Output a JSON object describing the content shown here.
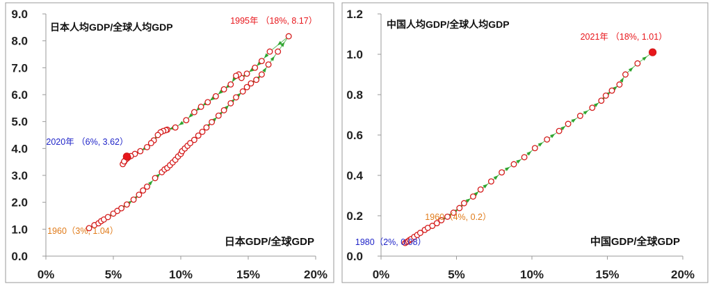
{
  "chart_data": [
    {
      "type": "scatter",
      "title": "",
      "inner_label_topleft": "日本人均GDP/全球人均GDP",
      "inner_label_bottomright": "日本GDP/全球GDP",
      "xlim": [
        0,
        20
      ],
      "ylim": [
        0,
        9
      ],
      "x_ticks": [
        "0%",
        "5%",
        "10%",
        "15%",
        "20%"
      ],
      "y_ticks": [
        "0.0",
        "1.0",
        "2.0",
        "3.0",
        "4.0",
        "5.0",
        "6.0",
        "7.0",
        "8.0",
        "9.0"
      ],
      "grid": false,
      "annotations": [
        {
          "text": "1995年  （18%, 8.17）",
          "x": 18.0,
          "y": 8.17,
          "color": "#e8161b"
        },
        {
          "text": "2020年  （6%, 3.62）",
          "x": 6.0,
          "y": 3.62,
          "color": "#1f24c8"
        },
        {
          "text": "1960（3%, 1.04）",
          "x": 3.2,
          "y": 1.04,
          "color": "#e07b1a"
        }
      ],
      "series": [
        {
          "marker": "circle",
          "x": [
            3.2,
            3.6,
            3.9,
            4.1,
            4.3,
            4.6,
            5.0,
            5.3,
            5.6,
            6.0,
            6.5,
            6.9,
            7.2,
            7.5,
            8.1,
            8.6,
            8.8,
            9.0,
            9.2,
            9.4,
            9.6,
            9.8,
            10.0,
            10.1,
            10.3,
            10.5,
            10.7,
            11.0,
            11.3,
            11.6,
            11.9,
            12.3,
            12.8,
            13.2,
            13.7,
            14.1,
            14.6,
            14.9,
            15.2,
            15.6,
            16.0,
            16.5,
            17.2,
            18.0,
            16.6,
            16.0,
            15.5,
            14.9,
            14.5,
            14.3,
            14.1,
            13.7,
            13.2,
            12.6,
            12.0,
            11.5,
            11.0,
            10.4,
            9.6,
            9.0,
            8.9,
            8.7,
            8.5,
            8.3,
            8.0,
            7.8,
            7.5,
            7.0,
            6.6,
            6.3,
            6.1,
            6.0,
            5.9,
            5.8,
            5.7,
            5.8,
            6.0
          ],
          "y": [
            1.04,
            1.15,
            1.22,
            1.3,
            1.36,
            1.45,
            1.58,
            1.68,
            1.78,
            1.92,
            2.1,
            2.28,
            2.44,
            2.58,
            2.9,
            3.12,
            3.22,
            3.28,
            3.38,
            3.48,
            3.58,
            3.7,
            3.8,
            3.9,
            4.0,
            4.1,
            4.2,
            4.32,
            4.48,
            4.62,
            4.78,
            4.98,
            5.22,
            5.42,
            5.68,
            5.9,
            6.12,
            6.28,
            6.42,
            6.55,
            6.75,
            7.12,
            7.6,
            8.17,
            7.6,
            7.25,
            7.0,
            6.78,
            6.62,
            6.75,
            6.7,
            6.38,
            6.2,
            5.94,
            5.72,
            5.55,
            5.35,
            5.05,
            4.78,
            4.7,
            4.68,
            4.65,
            4.6,
            4.5,
            4.3,
            4.2,
            4.05,
            3.9,
            3.8,
            3.72,
            3.66,
            3.62,
            3.58,
            3.5,
            3.42,
            3.52,
            3.7
          ]
        }
      ]
    },
    {
      "type": "scatter",
      "title": "",
      "inner_label_topleft": "中国人均GDP/全球人均GDP",
      "inner_label_bottomright": "中国GDP/全球GDP",
      "xlim": [
        0,
        20
      ],
      "ylim": [
        0,
        1.2
      ],
      "x_ticks": [
        "0%",
        "5%",
        "10%",
        "15%",
        "20%"
      ],
      "y_ticks": [
        "0.0",
        "0.2",
        "0.4",
        "0.6",
        "0.8",
        "1.0",
        "1.2"
      ],
      "grid": false,
      "annotations": [
        {
          "text": "2021年  （18%, 1.01）",
          "x": 18.0,
          "y": 1.01,
          "color": "#e8161b"
        },
        {
          "text": "1960（4%, 0.2）",
          "x": 4.3,
          "y": 0.2,
          "color": "#e07b1a"
        },
        {
          "text": "1980（2%, 0.08）",
          "x": 1.7,
          "y": 0.08,
          "color": "#1f24c8"
        }
      ],
      "series": [
        {
          "marker": "circle",
          "x": [
            1.6,
            1.7,
            1.8,
            1.9,
            2.0,
            2.2,
            2.4,
            2.6,
            2.9,
            3.1,
            3.4,
            3.7,
            4.0,
            4.4,
            4.8,
            5.2,
            5.5,
            6.1,
            6.6,
            7.3,
            8.0,
            8.8,
            9.5,
            10.2,
            11.0,
            11.8,
            12.4,
            13.2,
            14.0,
            14.6,
            14.9,
            15.3,
            15.8,
            16.2,
            17.0,
            18.0
          ],
          "y": [
            0.065,
            0.07,
            0.074,
            0.08,
            0.085,
            0.095,
            0.105,
            0.115,
            0.13,
            0.14,
            0.15,
            0.163,
            0.178,
            0.195,
            0.215,
            0.238,
            0.262,
            0.295,
            0.33,
            0.37,
            0.415,
            0.455,
            0.49,
            0.535,
            0.578,
            0.62,
            0.655,
            0.695,
            0.735,
            0.77,
            0.795,
            0.82,
            0.85,
            0.9,
            0.955,
            1.01
          ]
        }
      ]
    }
  ]
}
